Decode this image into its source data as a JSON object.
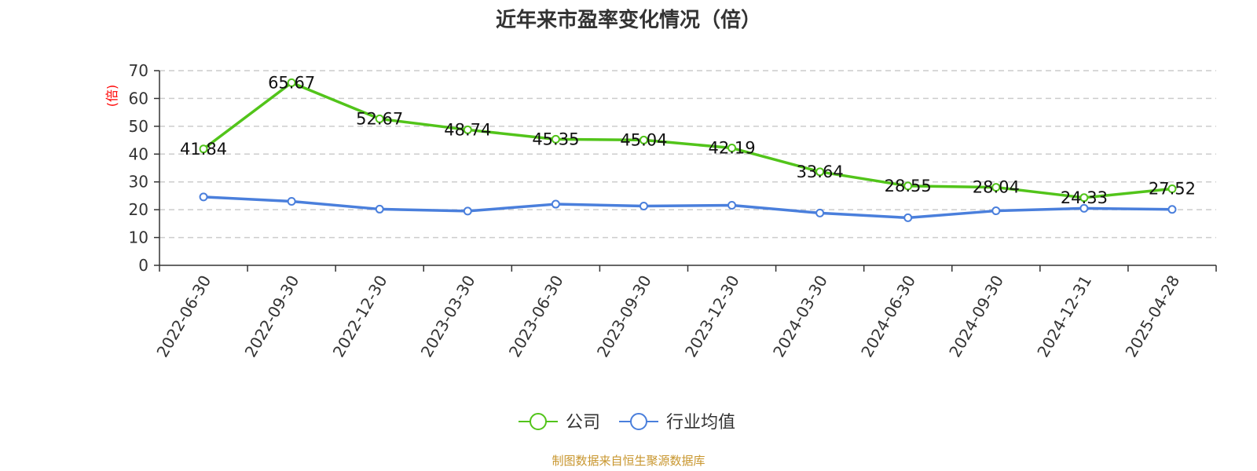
{
  "chart_data": {
    "type": "line",
    "title": "近年来市盈率变化情况（倍）",
    "ylabel": "(倍)",
    "ylim": [
      0,
      70
    ],
    "yticks": [
      0,
      10,
      20,
      30,
      40,
      50,
      60,
      70
    ],
    "grid": true,
    "legend_position": "bottom-center",
    "categories": [
      "2022-06-30",
      "2022-09-30",
      "2022-12-30",
      "2023-03-30",
      "2023-06-30",
      "2023-09-30",
      "2023-12-30",
      "2024-03-30",
      "2024-06-30",
      "2024-09-30",
      "2024-12-31",
      "2025-04-28"
    ],
    "series": [
      {
        "name": "公司",
        "color": "#52c41a",
        "show_labels": true,
        "values": [
          41.84,
          65.67,
          52.67,
          48.74,
          45.35,
          45.04,
          42.19,
          33.64,
          28.55,
          28.04,
          24.33,
          27.52
        ],
        "labels": [
          "41.84",
          "65.67",
          "52.67",
          "48.74",
          "45.35",
          "45.04",
          "42.19",
          "33.64",
          "28.55",
          "28.04",
          "24.33",
          "27.52"
        ]
      },
      {
        "name": "行业均值",
        "color": "#4a7fdc",
        "show_labels": false,
        "values": [
          24.6,
          23.0,
          20.2,
          19.5,
          22.0,
          21.3,
          21.6,
          18.8,
          17.1,
          19.6,
          20.5,
          20.1
        ]
      }
    ],
    "source": "制图数据来自恒生聚源数据库",
    "colors": {
      "axis": "#333333",
      "grid": "#cccccc",
      "ylabel": "#ff0000",
      "source": "#c8962e"
    }
  }
}
